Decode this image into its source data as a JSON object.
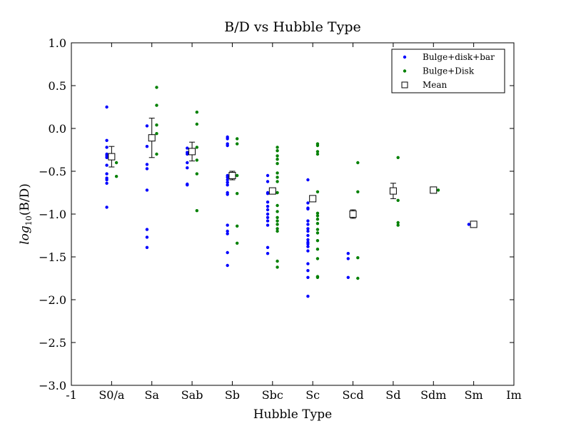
{
  "chart_data": {
    "type": "scatter",
    "title": "B/D vs Hubble Type",
    "xlabel": "Hubble Type",
    "ylabel": "log10(B/D)",
    "ylabel_main": "log",
    "ylabel_sub": "10",
    "ylabel_rest": "(B/D)",
    "xlim": [
      -1,
      10
    ],
    "ylim": [
      -3.0,
      1.0
    ],
    "x_ticks": [
      {
        "value": -1,
        "label": "-1"
      },
      {
        "value": 0,
        "label": "S0/a"
      },
      {
        "value": 1,
        "label": "Sa"
      },
      {
        "value": 2,
        "label": "Sab"
      },
      {
        "value": 3,
        "label": "Sb"
      },
      {
        "value": 4,
        "label": "Sbc"
      },
      {
        "value": 5,
        "label": "Sc"
      },
      {
        "value": 6,
        "label": "Scd"
      },
      {
        "value": 7,
        "label": "Sd"
      },
      {
        "value": 8,
        "label": "Sdm"
      },
      {
        "value": 9,
        "label": "Sm"
      },
      {
        "value": 10,
        "label": "Im"
      }
    ],
    "y_ticks": [
      {
        "value": 1.0,
        "label": "1.0"
      },
      {
        "value": 0.5,
        "label": "0.5"
      },
      {
        "value": 0.0,
        "label": "0.0"
      },
      {
        "value": -0.5,
        "label": "−0.5"
      },
      {
        "value": -1.0,
        "label": "−1.0"
      },
      {
        "value": -1.5,
        "label": "−1.5"
      },
      {
        "value": -2.0,
        "label": "−2.0"
      },
      {
        "value": -2.5,
        "label": "−2.5"
      },
      {
        "value": -3.0,
        "label": "−3.0"
      }
    ],
    "grid": false,
    "legend_position": "top-right",
    "series": [
      {
        "name": "Bulge+disk+bar",
        "color": "#0000ff",
        "marker": "dot",
        "x_offset": -0.12,
        "points": [
          [
            0,
            0.25
          ],
          [
            0,
            -0.14
          ],
          [
            0,
            -0.22
          ],
          [
            0,
            -0.3
          ],
          [
            0,
            -0.32
          ],
          [
            0,
            -0.34
          ],
          [
            0,
            -0.43
          ],
          [
            0,
            -0.53
          ],
          [
            0,
            -0.58
          ],
          [
            0,
            -0.6
          ],
          [
            0,
            -0.64
          ],
          [
            0,
            -0.92
          ],
          [
            1,
            0.03
          ],
          [
            1,
            -0.21
          ],
          [
            1,
            -0.42
          ],
          [
            1,
            -0.47
          ],
          [
            1,
            -0.72
          ],
          [
            1,
            -1.18
          ],
          [
            1,
            -1.27
          ],
          [
            1,
            -1.39
          ],
          [
            2,
            -0.23
          ],
          [
            2,
            -0.28
          ],
          [
            2,
            -0.3
          ],
          [
            2,
            -0.4
          ],
          [
            2,
            -0.46
          ],
          [
            2,
            -0.65
          ],
          [
            2,
            -0.66
          ],
          [
            3,
            -0.1
          ],
          [
            3,
            -0.12
          ],
          [
            3,
            -0.18
          ],
          [
            3,
            -0.2
          ],
          [
            3,
            -0.55
          ],
          [
            3,
            -0.57
          ],
          [
            3,
            -0.6
          ],
          [
            3,
            -0.63
          ],
          [
            3,
            -0.66
          ],
          [
            3,
            -0.75
          ],
          [
            3,
            -0.77
          ],
          [
            3,
            -1.13
          ],
          [
            3,
            -1.2
          ],
          [
            3,
            -1.23
          ],
          [
            3,
            -1.45
          ],
          [
            3,
            -1.6
          ],
          [
            4,
            -0.55
          ],
          [
            4,
            -0.62
          ],
          [
            4,
            -0.75
          ],
          [
            4,
            -0.76
          ],
          [
            4,
            -0.86
          ],
          [
            4,
            -0.91
          ],
          [
            4,
            -0.95
          ],
          [
            4,
            -1.0
          ],
          [
            4,
            -1.04
          ],
          [
            4,
            -1.08
          ],
          [
            4,
            -1.13
          ],
          [
            4,
            -1.39
          ],
          [
            4,
            -1.46
          ],
          [
            5,
            -0.6
          ],
          [
            5,
            -0.87
          ],
          [
            5,
            -0.93
          ],
          [
            5,
            -0.94
          ],
          [
            5,
            -1.08
          ],
          [
            5,
            -1.12
          ],
          [
            5,
            -1.17
          ],
          [
            5,
            -1.2
          ],
          [
            5,
            -1.25
          ],
          [
            5,
            -1.3
          ],
          [
            5,
            -1.33
          ],
          [
            5,
            -1.35
          ],
          [
            5,
            -1.38
          ],
          [
            5,
            -1.43
          ],
          [
            5,
            -1.58
          ],
          [
            5,
            -1.66
          ],
          [
            5,
            -1.74
          ],
          [
            5,
            -1.96
          ],
          [
            6,
            -1.46
          ],
          [
            6,
            -1.52
          ],
          [
            6,
            -1.74
          ],
          [
            9,
            -1.12
          ]
        ]
      },
      {
        "name": "Bulge+Disk",
        "color": "#008000",
        "marker": "dot",
        "x_offset": 0.12,
        "points": [
          [
            0,
            -0.4
          ],
          [
            0,
            -0.56
          ],
          [
            1,
            0.48
          ],
          [
            1,
            0.27
          ],
          [
            1,
            0.04
          ],
          [
            1,
            -0.06
          ],
          [
            1,
            -0.3
          ],
          [
            2,
            0.19
          ],
          [
            2,
            0.05
          ],
          [
            2,
            -0.22
          ],
          [
            2,
            -0.37
          ],
          [
            2,
            -0.53
          ],
          [
            2,
            -0.96
          ],
          [
            3,
            -0.12
          ],
          [
            3,
            -0.18
          ],
          [
            3,
            -0.55
          ],
          [
            3,
            -0.76
          ],
          [
            3,
            -1.14
          ],
          [
            3,
            -1.34
          ],
          [
            4,
            -0.22
          ],
          [
            4,
            -0.26
          ],
          [
            4,
            -0.32
          ],
          [
            4,
            -0.36
          ],
          [
            4,
            -0.41
          ],
          [
            4,
            -0.52
          ],
          [
            4,
            -0.57
          ],
          [
            4,
            -0.62
          ],
          [
            4,
            -0.75
          ],
          [
            4,
            -0.9
          ],
          [
            4,
            -0.97
          ],
          [
            4,
            -1.04
          ],
          [
            4,
            -1.08
          ],
          [
            4,
            -1.12
          ],
          [
            4,
            -1.17
          ],
          [
            4,
            -1.2
          ],
          [
            4,
            -1.55
          ],
          [
            4,
            -1.62
          ],
          [
            5,
            -0.18
          ],
          [
            5,
            -0.2
          ],
          [
            5,
            -0.27
          ],
          [
            5,
            -0.3
          ],
          [
            5,
            -0.74
          ],
          [
            5,
            -0.99
          ],
          [
            5,
            -1.02
          ],
          [
            5,
            -1.06
          ],
          [
            5,
            -1.11
          ],
          [
            5,
            -1.18
          ],
          [
            5,
            -1.22
          ],
          [
            5,
            -1.31
          ],
          [
            5,
            -1.41
          ],
          [
            5,
            -1.52
          ],
          [
            5,
            -1.73
          ],
          [
            5,
            -1.74
          ],
          [
            6,
            -0.4
          ],
          [
            6,
            -0.74
          ],
          [
            6,
            -1.51
          ],
          [
            6,
            -1.75
          ],
          [
            7,
            -0.34
          ],
          [
            7,
            -0.84
          ],
          [
            7,
            -1.1
          ],
          [
            7,
            -1.13
          ],
          [
            8,
            -0.72
          ]
        ]
      },
      {
        "name": "Mean",
        "color": "#000000",
        "marker": "open-square",
        "x_offset": 0,
        "points": [
          [
            0,
            -0.33
          ],
          [
            1,
            -0.11
          ],
          [
            2,
            -0.27
          ],
          [
            3,
            -0.55
          ],
          [
            4,
            -0.73
          ],
          [
            5,
            -0.82
          ],
          [
            6,
            -1.0
          ],
          [
            7,
            -0.73
          ],
          [
            8,
            -0.72
          ],
          [
            9,
            -1.12
          ]
        ],
        "errors": [
          0.12,
          0.23,
          0.11,
          0.05,
          0.0,
          0.0,
          0.05,
          0.09,
          0.0,
          0.0
        ]
      }
    ]
  }
}
